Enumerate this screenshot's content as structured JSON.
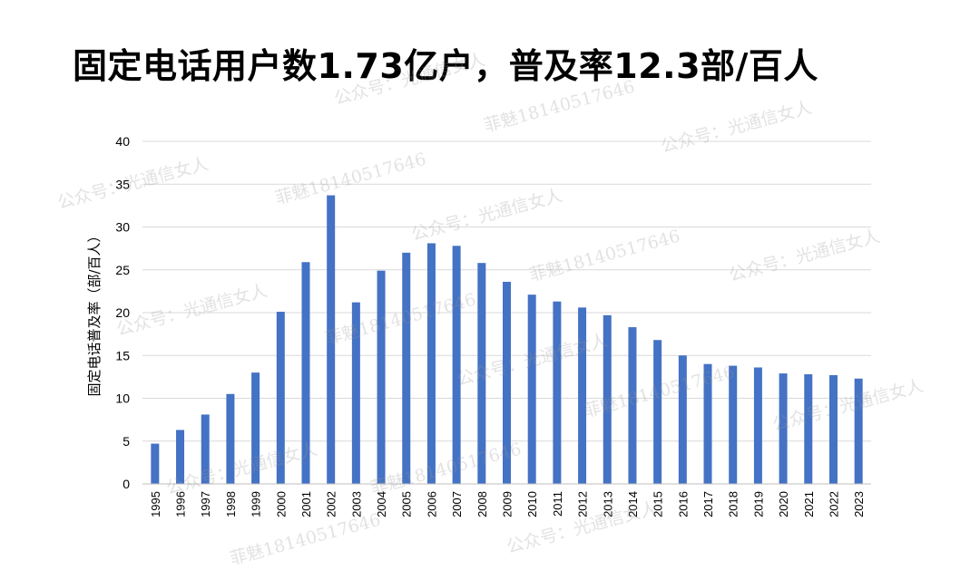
{
  "title": "固定电话用户数1.73亿户，普及率12.3部/百人",
  "watermarks": [
    "公众号：光通信女人",
    "菲魅18140517646"
  ],
  "colors": {
    "bar": "#4472C4",
    "grid": "#d9d9d9",
    "axis": "#bfbfbf",
    "text": "#000000"
  },
  "chart_data": {
    "type": "bar",
    "ylabel": "固定电话普及率（部/百人）",
    "xlabel": "",
    "ylim": [
      0,
      40
    ],
    "yticks": [
      0,
      5,
      10,
      15,
      20,
      25,
      30,
      35,
      40
    ],
    "grid": true,
    "legend": "none",
    "categories": [
      "1995",
      "1996",
      "1997",
      "1998",
      "1999",
      "2000",
      "2001",
      "2002",
      "2003",
      "2004",
      "2005",
      "2006",
      "2007",
      "2008",
      "2009",
      "2010",
      "2011",
      "2012",
      "2013",
      "2014",
      "2015",
      "2016",
      "2017",
      "2018",
      "2019",
      "2020",
      "2021",
      "2022",
      "2023"
    ],
    "series": [
      {
        "values": [
          4.7,
          6.3,
          8.1,
          10.5,
          13.0,
          20.1,
          25.9,
          33.7,
          21.2,
          24.9,
          27.0,
          28.1,
          27.8,
          25.8,
          23.6,
          22.1,
          21.3,
          20.6,
          19.7,
          18.3,
          16.8,
          15.0,
          14.0,
          13.8,
          13.6,
          12.9,
          12.8,
          12.7,
          12.3
        ]
      }
    ]
  }
}
